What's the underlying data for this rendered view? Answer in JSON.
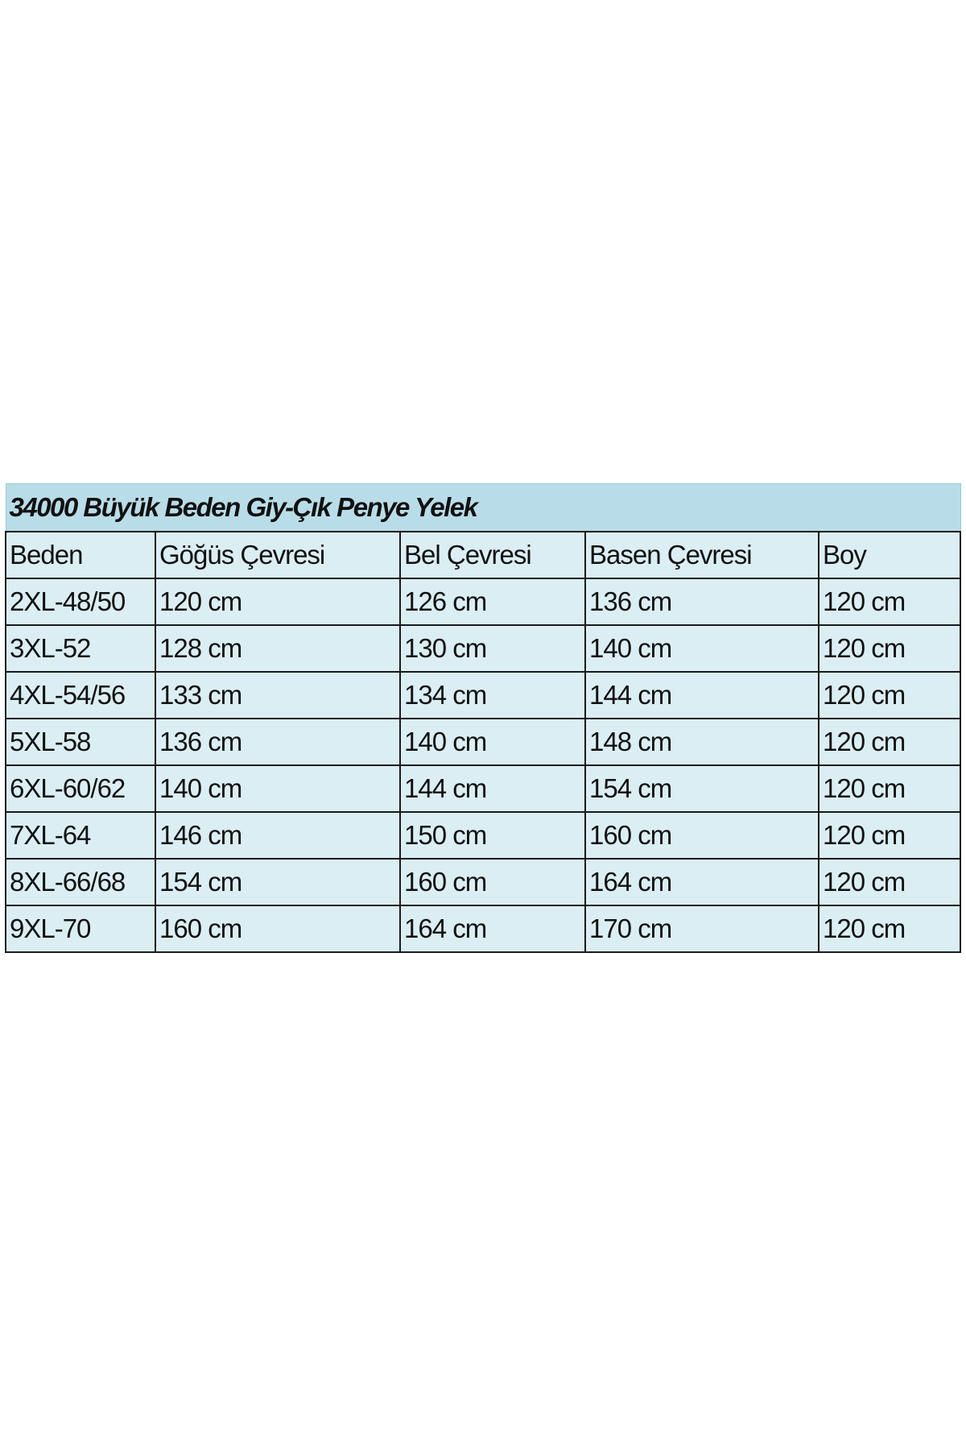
{
  "title": "34000 Büyük Beden Giy-Çık Penye Yelek",
  "headers": [
    "Beden",
    "Göğüs Çevresi",
    "Bel Çevresi",
    "Basen Çevresi",
    "Boy"
  ],
  "rows": [
    [
      "2XL-48/50",
      "120 cm",
      "126 cm",
      "136 cm",
      "120 cm"
    ],
    [
      "3XL-52",
      "128 cm",
      "130 cm",
      "140 cm",
      "120 cm"
    ],
    [
      "4XL-54/56",
      "133 cm",
      "134 cm",
      "144 cm",
      "120 cm"
    ],
    [
      "5XL-58",
      "136 cm",
      "140 cm",
      "148 cm",
      "120 cm"
    ],
    [
      "6XL-60/62",
      "140 cm",
      "144 cm",
      "154 cm",
      "120 cm"
    ],
    [
      "7XL-64",
      "146 cm",
      "150 cm",
      "160 cm",
      "120 cm"
    ],
    [
      "8XL-66/68",
      "154 cm",
      "160 cm",
      "164 cm",
      "120 cm"
    ],
    [
      "9XL-70",
      "160 cm",
      "164 cm",
      "170 cm",
      "120 cm"
    ]
  ],
  "colors": {
    "title_bg": "#b9dde8",
    "cell_bg": "#dbeef4",
    "border": "#1a1a1a"
  }
}
